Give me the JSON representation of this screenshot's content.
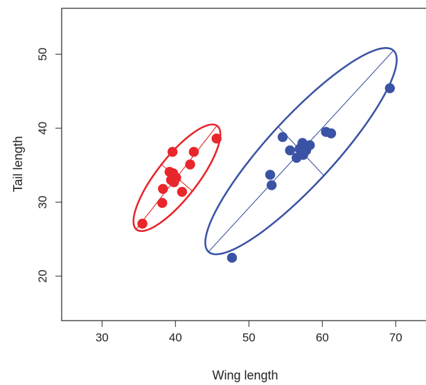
{
  "chart_data": {
    "type": "scatter",
    "xlabel": "Wing length",
    "ylabel": "Tail length",
    "xlim": [
      24.5,
      74.5
    ],
    "ylim": [
      14,
      56.2
    ],
    "xticks": [
      30,
      40,
      50,
      60,
      70
    ],
    "yticks": [
      20,
      30,
      40,
      50
    ],
    "grid": false,
    "legend": "none",
    "series": [
      {
        "color": "#e8262b",
        "points": [
          [
            35.5,
            27.1
          ],
          [
            38.2,
            29.9
          ],
          [
            38.3,
            31.8
          ],
          [
            40.9,
            31.4
          ],
          [
            39.4,
            33.0
          ],
          [
            39.8,
            32.7
          ],
          [
            40.1,
            33.3
          ],
          [
            39.2,
            34.1
          ],
          [
            39.7,
            33.9
          ],
          [
            42.0,
            35.1
          ],
          [
            39.6,
            36.8
          ],
          [
            42.5,
            36.8
          ],
          [
            45.6,
            38.6
          ]
        ],
        "ellipse": {
          "center": [
            40.2,
            33.3
          ],
          "major_end_a": [
            34.7,
            26.4
          ],
          "major_end_b": [
            45.7,
            40.4
          ],
          "minor_end_a": [
            42.3,
            31.5
          ],
          "minor_end_b": [
            38.1,
            35.1
          ]
        }
      },
      {
        "color": "#3a53a4",
        "points": [
          [
            47.7,
            22.5
          ],
          [
            52.9,
            33.7
          ],
          [
            53.1,
            32.3
          ],
          [
            54.6,
            38.8
          ],
          [
            55.6,
            37.0
          ],
          [
            56.5,
            36.0
          ],
          [
            56.9,
            37.2
          ],
          [
            57.2,
            37.6
          ],
          [
            57.3,
            38.0
          ],
          [
            57.4,
            36.4
          ],
          [
            57.8,
            37.0
          ],
          [
            58.3,
            37.7
          ],
          [
            60.5,
            39.5
          ],
          [
            61.2,
            39.3
          ],
          [
            69.2,
            45.4
          ]
        ],
        "ellipse": {
          "center": [
            57.1,
            36.9
          ],
          "major_end_a": [
            44.5,
            23.3
          ],
          "major_end_b": [
            69.7,
            50.5
          ],
          "minor_end_a": [
            60.2,
            33.6
          ],
          "minor_end_b": [
            54.0,
            40.2
          ]
        }
      }
    ]
  }
}
